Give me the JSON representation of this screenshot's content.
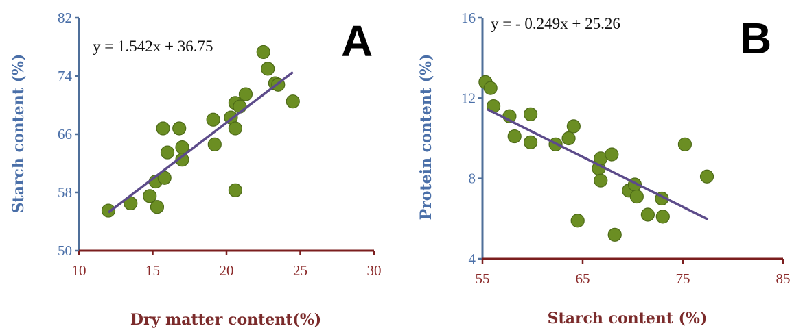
{
  "colors": {
    "y_axis": "#4f6f9a",
    "x_axis": "#7b1e1e",
    "y_title": "#4a6fa8",
    "x_title": "#7b2b2b",
    "y_ticks": "#4a6fa8",
    "x_ticks": "#8b2a2a",
    "point_fill": "#6b8e23",
    "point_stroke": "#4d6a18",
    "trendline": "#5c4b8a"
  },
  "chart_data": [
    {
      "type": "scatter",
      "panel_label": "A",
      "equation": "y = 1.542x + 36.75",
      "xlabel": "Dry matter content(%)",
      "ylabel": "Starch content (%)",
      "xlim": [
        10,
        30
      ],
      "ylim": [
        50,
        82
      ],
      "xticks": [
        "10",
        "15",
        "20",
        "25",
        "30"
      ],
      "yticks": [
        "50",
        "58",
        "66",
        "74",
        "82"
      ],
      "trendline": {
        "slope": 1.542,
        "intercept": 36.75,
        "x_range": [
          12.0,
          24.5
        ]
      },
      "points": [
        [
          12.0,
          55.5
        ],
        [
          13.5,
          56.5
        ],
        [
          14.8,
          57.5
        ],
        [
          15.3,
          56.0
        ],
        [
          15.2,
          59.5
        ],
        [
          15.8,
          60.0
        ],
        [
          15.7,
          66.8
        ],
        [
          16.0,
          63.5
        ],
        [
          16.8,
          66.8
        ],
        [
          17.0,
          64.2
        ],
        [
          17.0,
          62.5
        ],
        [
          19.1,
          68.0
        ],
        [
          19.2,
          64.6
        ],
        [
          20.3,
          68.3
        ],
        [
          20.6,
          66.8
        ],
        [
          20.6,
          70.3
        ],
        [
          20.6,
          58.3
        ],
        [
          20.9,
          69.8
        ],
        [
          21.3,
          71.5
        ],
        [
          22.5,
          77.3
        ],
        [
          22.8,
          75.0
        ],
        [
          23.3,
          73.0
        ],
        [
          23.5,
          72.8
        ],
        [
          24.5,
          70.5
        ]
      ]
    },
    {
      "type": "scatter",
      "panel_label": "B",
      "equation": "y = - 0.249x + 25.26",
      "xlabel": "Starch content (%)",
      "ylabel": "Protein content (%)",
      "xlim": [
        55,
        85
      ],
      "ylim": [
        4,
        16
      ],
      "xticks": [
        "55",
        "65",
        "75",
        "85"
      ],
      "yticks": [
        "4",
        "8",
        "12",
        "16"
      ],
      "trendline": {
        "slope": -0.249,
        "intercept": 25.26,
        "x_range": [
          55.5,
          77.5
        ]
      },
      "points": [
        [
          55.3,
          12.8
        ],
        [
          55.8,
          12.5
        ],
        [
          56.1,
          11.6
        ],
        [
          57.7,
          11.1
        ],
        [
          58.2,
          10.1
        ],
        [
          59.8,
          9.8
        ],
        [
          59.8,
          11.2
        ],
        [
          62.3,
          9.7
        ],
        [
          63.6,
          10.0
        ],
        [
          64.1,
          10.6
        ],
        [
          64.5,
          5.9
        ],
        [
          66.6,
          8.5
        ],
        [
          66.8,
          9.0
        ],
        [
          66.8,
          7.9
        ],
        [
          67.9,
          9.2
        ],
        [
          68.2,
          5.2
        ],
        [
          69.6,
          7.4
        ],
        [
          70.2,
          7.7
        ],
        [
          70.4,
          7.1
        ],
        [
          71.5,
          6.2
        ],
        [
          72.9,
          7.0
        ],
        [
          73.0,
          6.1
        ],
        [
          75.2,
          9.7
        ],
        [
          77.4,
          8.1
        ]
      ]
    }
  ]
}
